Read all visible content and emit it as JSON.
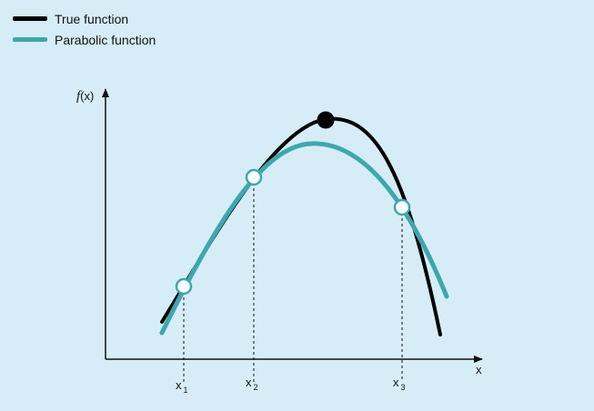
{
  "legend": {
    "true_label": "True function",
    "parabolic_label": "Parabolic function"
  },
  "colors": {
    "background": "#d6edf8",
    "true_function": "#000000",
    "parabolic_function": "#3ea7ae",
    "axis": "#111111"
  },
  "axes": {
    "y_label_f": "f",
    "y_label_arg": "(x)",
    "x_label": "x"
  },
  "points": [
    {
      "label": "x",
      "sub": "1"
    },
    {
      "label": "x",
      "sub": "2"
    },
    {
      "label": "x",
      "sub": "3"
    }
  ]
}
